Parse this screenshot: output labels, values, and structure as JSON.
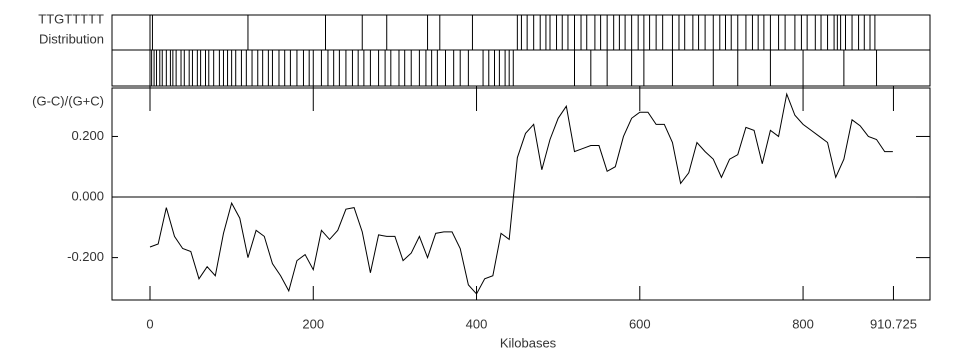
{
  "chart_data": {
    "type": "line",
    "motif_label": "TTGTTTTT",
    "distribution_label": "Distribution",
    "y_label": "(G-C)/(G+C)",
    "x_label": "Kilobases",
    "tracks": [
      [
        0,
        3,
        120,
        215,
        260,
        290,
        340,
        355,
        395,
        450,
        455,
        462,
        470,
        478,
        485,
        490,
        498,
        505,
        512,
        520,
        528,
        535,
        545,
        552,
        560,
        568,
        575,
        582,
        590,
        598,
        605,
        612,
        620,
        628,
        640,
        648,
        655,
        665,
        672,
        680,
        690,
        698,
        705,
        712,
        720,
        730,
        738,
        745,
        752,
        760,
        770,
        778,
        790,
        798,
        805,
        815,
        822,
        830,
        838,
        842,
        846,
        852,
        860,
        868,
        875,
        882,
        888
      ],
      [
        0,
        2,
        5,
        8,
        12,
        15,
        20,
        25,
        28,
        32,
        38,
        42,
        48,
        52,
        58,
        62,
        68,
        72,
        78,
        85,
        90,
        95,
        100,
        105,
        112,
        118,
        125,
        132,
        138,
        145,
        150,
        158,
        165,
        172,
        180,
        188,
        195,
        200,
        210,
        218,
        225,
        232,
        240,
        248,
        255,
        262,
        270,
        280,
        288,
        295,
        305,
        312,
        320,
        330,
        338,
        345,
        352,
        362,
        372,
        380,
        390,
        408,
        415,
        422,
        428,
        435,
        440,
        445,
        520,
        540,
        560,
        590,
        605,
        640,
        690,
        720,
        760,
        800,
        850,
        890
      ]
    ],
    "x": [
      0,
      10,
      20,
      30,
      40,
      50,
      60,
      70,
      80,
      90,
      100,
      110,
      120,
      130,
      140,
      150,
      160,
      170,
      180,
      190,
      200,
      210,
      220,
      230,
      240,
      250,
      260,
      270,
      280,
      290,
      300,
      310,
      320,
      330,
      340,
      350,
      360,
      370,
      380,
      390,
      400,
      410,
      420,
      430,
      440,
      450,
      460,
      470,
      480,
      490,
      500,
      510,
      520,
      530,
      540,
      550,
      560,
      570,
      580,
      590,
      600,
      610,
      620,
      630,
      640,
      650,
      660,
      670,
      680,
      690,
      700,
      710,
      720,
      730,
      740,
      750,
      760,
      770,
      780,
      790,
      800,
      810,
      820,
      830,
      840,
      850,
      860,
      870,
      880,
      890,
      900,
      910
    ],
    "series": [
      {
        "color": "#000000",
        "values": [
          -0.165,
          -0.155,
          -0.035,
          -0.13,
          -0.17,
          -0.18,
          -0.27,
          -0.23,
          -0.26,
          -0.12,
          -0.02,
          -0.07,
          -0.2,
          -0.11,
          -0.13,
          -0.22,
          -0.26,
          -0.31,
          -0.21,
          -0.19,
          -0.24,
          -0.11,
          -0.14,
          -0.11,
          -0.04,
          -0.035,
          -0.115,
          -0.25,
          -0.125,
          -0.13,
          -0.13,
          -0.21,
          -0.185,
          -0.13,
          -0.2,
          -0.12,
          -0.115,
          -0.115,
          -0.17,
          -0.29,
          -0.32,
          -0.27,
          -0.26,
          -0.12,
          -0.14,
          0.13,
          0.21,
          0.24,
          0.09,
          0.19,
          0.26,
          0.3,
          0.15,
          0.16,
          0.17,
          0.17,
          0.085,
          0.1,
          0.2,
          0.26,
          0.28,
          0.28,
          0.24,
          0.24,
          0.18,
          0.045,
          0.08,
          0.18,
          0.15,
          0.125,
          0.065,
          0.125,
          0.14,
          0.23,
          0.22,
          0.11,
          0.22,
          0.2,
          0.34,
          0.27,
          0.24,
          0.22,
          0.2,
          0.18,
          0.065,
          0.125,
          0.255,
          0.235,
          0.2,
          0.19,
          0.15,
          0.15
        ]
      }
    ],
    "reference_line": 0,
    "xlim": [
      -46.55,
      955.5
    ],
    "xticks": [
      0,
      200,
      400,
      600,
      800,
      910.725
    ],
    "ylim": [
      -0.34,
      0.36
    ],
    "yticks": [
      {
        "value": -0.2,
        "label": "-0.200"
      },
      {
        "value": 0,
        "label": "0.000"
      },
      {
        "value": 0.2,
        "label": "0.200"
      }
    ]
  }
}
